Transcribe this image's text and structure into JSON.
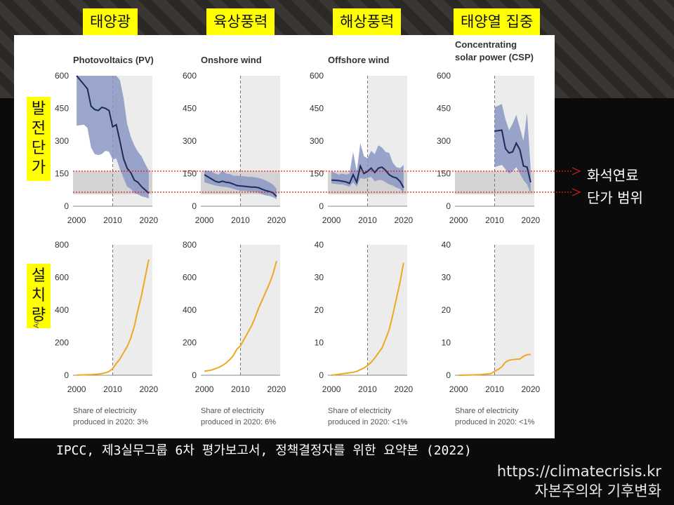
{
  "top_labels": [
    "태양광",
    "육상풍력",
    "해상풍력",
    "태양열 집중"
  ],
  "side_labels": {
    "cost": [
      "발",
      "전",
      "단",
      "가"
    ],
    "installed": [
      "설",
      "치",
      "량"
    ],
    "installed_partial_axis": "Ac"
  },
  "fossil_range_text": "화석연료\n단가 범위",
  "footer": {
    "citation": "IPCC, 제3실무그룹 6차 평가보고서, 정책결정자를 위한 요약본 (2022)",
    "url": "https://climatecrisis.kr",
    "site": "자본주의와 기후변화"
  },
  "colors": {
    "cost_line": "#1a2b5c",
    "cost_band": "#8a96c4",
    "fossil_band": "#d3d3d3",
    "capacity_line": "#f0a81e",
    "plot_bg": "#ececec",
    "label_bg": "#ffff00",
    "dotted_red": "#e01b1b"
  },
  "chart_data": [
    {
      "type": "line",
      "title": "Photovoltaics (PV)",
      "x": [
        2000,
        2002,
        2003,
        2004,
        2005,
        2006,
        2007,
        2008,
        2009,
        2010,
        2011,
        2012,
        2013,
        2014,
        2015,
        2016,
        2017,
        2018,
        2019,
        2020
      ],
      "series": [
        {
          "values": [
            600,
            560,
            540,
            460,
            445,
            440,
            455,
            450,
            440,
            365,
            375,
            300,
            220,
            175,
            155,
            120,
            110,
            90,
            75,
            60
          ]
        },
        {
          "values": [
            370,
            375,
            360,
            270,
            240,
            235,
            240,
            255,
            250,
            215,
            220,
            170,
            130,
            90,
            80,
            60,
            55,
            45,
            42,
            35
          ]
        },
        {
          "values": [
            600,
            600,
            600,
            600,
            600,
            600,
            600,
            600,
            600,
            600,
            600,
            580,
            500,
            380,
            320,
            280,
            250,
            230,
            195,
            165
          ]
        }
      ],
      "fossil_range": [
        55,
        160
      ],
      "xlim": [
        1999,
        2021
      ],
      "ylim": [
        0,
        600
      ],
      "yticks": [
        0,
        150,
        300,
        450,
        600
      ],
      "xticks": [
        2000,
        2010,
        2020
      ],
      "dashed_x": 2010
    },
    {
      "type": "line",
      "title": "Onshore wind",
      "x": [
        2000,
        2002,
        2003,
        2004,
        2005,
        2006,
        2007,
        2008,
        2009,
        2010,
        2011,
        2012,
        2013,
        2014,
        2015,
        2016,
        2017,
        2018,
        2019,
        2020
      ],
      "series": [
        {
          "values": [
            145,
            125,
            115,
            110,
            115,
            110,
            108,
            102,
            95,
            93,
            92,
            90,
            88,
            88,
            85,
            78,
            72,
            68,
            62,
            45
          ]
        },
        {
          "values": [
            110,
            100,
            95,
            92,
            90,
            88,
            85,
            80,
            75,
            72,
            70,
            68,
            66,
            65,
            62,
            55,
            50,
            47,
            42,
            32
          ]
        },
        {
          "values": [
            165,
            160,
            150,
            145,
            165,
            150,
            148,
            140,
            140,
            138,
            138,
            135,
            135,
            133,
            130,
            125,
            118,
            110,
            100,
            80
          ]
        }
      ],
      "fossil_range": [
        55,
        160
      ],
      "xlim": [
        1999,
        2021
      ],
      "ylim": [
        0,
        600
      ],
      "yticks": [
        0,
        150,
        300,
        450,
        600
      ],
      "xticks": [
        2000,
        2010,
        2020
      ],
      "dashed_x": 2010
    },
    {
      "type": "line",
      "title": "Offshore wind",
      "x": [
        2000,
        2002,
        2003,
        2004,
        2005,
        2006,
        2007,
        2008,
        2009,
        2010,
        2011,
        2012,
        2013,
        2014,
        2015,
        2016,
        2017,
        2018,
        2019,
        2020
      ],
      "series": [
        {
          "values": [
            120,
            118,
            115,
            112,
            105,
            145,
            110,
            185,
            150,
            160,
            175,
            155,
            175,
            180,
            165,
            145,
            135,
            130,
            115,
            85
          ]
        },
        {
          "values": [
            105,
            100,
            100,
            95,
            90,
            110,
            90,
            130,
            125,
            130,
            135,
            115,
            120,
            120,
            110,
            100,
            95,
            85,
            80,
            60
          ]
        },
        {
          "values": [
            160,
            145,
            150,
            145,
            150,
            250,
            160,
            290,
            230,
            220,
            255,
            240,
            280,
            270,
            250,
            245,
            200,
            180,
            175,
            190
          ]
        }
      ],
      "fossil_range": [
        55,
        160
      ],
      "xlim": [
        1999,
        2021
      ],
      "ylim": [
        0,
        600
      ],
      "yticks": [
        0,
        150,
        300,
        450,
        600
      ],
      "xticks": [
        2000,
        2010,
        2020
      ],
      "dashed_x": 2010
    },
    {
      "type": "line",
      "title": "Concentrating solar power (CSP)",
      "x": [
        2010,
        2012,
        2013,
        2014,
        2015,
        2016,
        2017,
        2018,
        2019,
        2020
      ],
      "series": [
        {
          "values": [
            345,
            350,
            265,
            245,
            250,
            290,
            260,
            185,
            180,
            110
          ]
        },
        {
          "values": [
            180,
            190,
            170,
            150,
            160,
            180,
            150,
            120,
            100,
            60
          ]
        },
        {
          "values": [
            455,
            470,
            400,
            350,
            380,
            420,
            360,
            300,
            430,
            170
          ]
        }
      ],
      "fossil_range": [
        55,
        160
      ],
      "xlim": [
        1999,
        2021
      ],
      "ylim": [
        0,
        600
      ],
      "yticks": [
        0,
        150,
        300,
        450,
        600
      ],
      "xticks": [
        2000,
        2010,
        2020
      ],
      "dashed_x": 2010
    },
    {
      "type": "line",
      "note": "Share of electricity produced in 2020: 3%",
      "x": [
        2000,
        2002,
        2004,
        2006,
        2007,
        2008,
        2009,
        2010,
        2011,
        2012,
        2013,
        2014,
        2015,
        2016,
        2017,
        2018,
        2019,
        2020
      ],
      "series": [
        {
          "values": [
            1,
            2,
            4,
            7,
            10,
            15,
            23,
            40,
            72,
            100,
            138,
            175,
            227,
            300,
            400,
            490,
            600,
            710
          ]
        }
      ],
      "xlim": [
        1999,
        2021
      ],
      "ylim": [
        0,
        800
      ],
      "yticks": [
        0,
        200,
        400,
        600,
        800
      ],
      "xticks": [
        2000,
        2010,
        2020
      ],
      "dashed_x": 2010
    },
    {
      "type": "line",
      "note": "Share of electricity produced in 2020: 6%",
      "x": [
        2000,
        2002,
        2004,
        2005,
        2006,
        2007,
        2008,
        2009,
        2010,
        2011,
        2012,
        2013,
        2014,
        2015,
        2016,
        2017,
        2018,
        2019,
        2020
      ],
      "series": [
        {
          "values": [
            24,
            32,
            48,
            60,
            75,
            95,
            120,
            160,
            180,
            220,
            260,
            300,
            350,
            410,
            460,
            510,
            560,
            620,
            700
          ]
        }
      ],
      "xlim": [
        1999,
        2021
      ],
      "ylim": [
        0,
        800
      ],
      "yticks": [
        0,
        200,
        400,
        600,
        800
      ],
      "xticks": [
        2000,
        2010,
        2020
      ],
      "dashed_x": 2010
    },
    {
      "type": "line",
      "note": "Share of electricity produced in 2020: <1%",
      "x": [
        2000,
        2002,
        2004,
        2006,
        2007,
        2008,
        2009,
        2010,
        2011,
        2012,
        2013,
        2014,
        2015,
        2016,
        2017,
        2018,
        2019,
        2020
      ],
      "series": [
        {
          "values": [
            0,
            0.3,
            0.6,
            0.9,
            1.2,
            1.7,
            2.2,
            3,
            4,
            5.3,
            6.8,
            8.3,
            11,
            14,
            18.5,
            23.5,
            28.5,
            34.5
          ]
        }
      ],
      "xlim": [
        1999,
        2021
      ],
      "ylim": [
        0,
        40
      ],
      "yticks": [
        0,
        10,
        20,
        30,
        40
      ],
      "xticks": [
        2000,
        2010,
        2020
      ],
      "dashed_x": 2010
    },
    {
      "type": "line",
      "note": "Share of electricity produced in 2020: <1%",
      "x": [
        2000,
        2004,
        2006,
        2007,
        2008,
        2009,
        2010,
        2011,
        2012,
        2013,
        2014,
        2015,
        2016,
        2017,
        2018,
        2019,
        2020
      ],
      "series": [
        {
          "values": [
            0,
            0.1,
            0.2,
            0.3,
            0.4,
            0.5,
            1.2,
            1.8,
            2.6,
            4,
            4.6,
            4.8,
            4.9,
            5,
            5.8,
            6.3,
            6.4
          ]
        }
      ],
      "xlim": [
        1999,
        2021
      ],
      "ylim": [
        0,
        40
      ],
      "yticks": [
        0,
        10,
        20,
        30,
        40
      ],
      "xticks": [
        2000,
        2010,
        2020
      ],
      "dashed_x": 2010
    }
  ]
}
